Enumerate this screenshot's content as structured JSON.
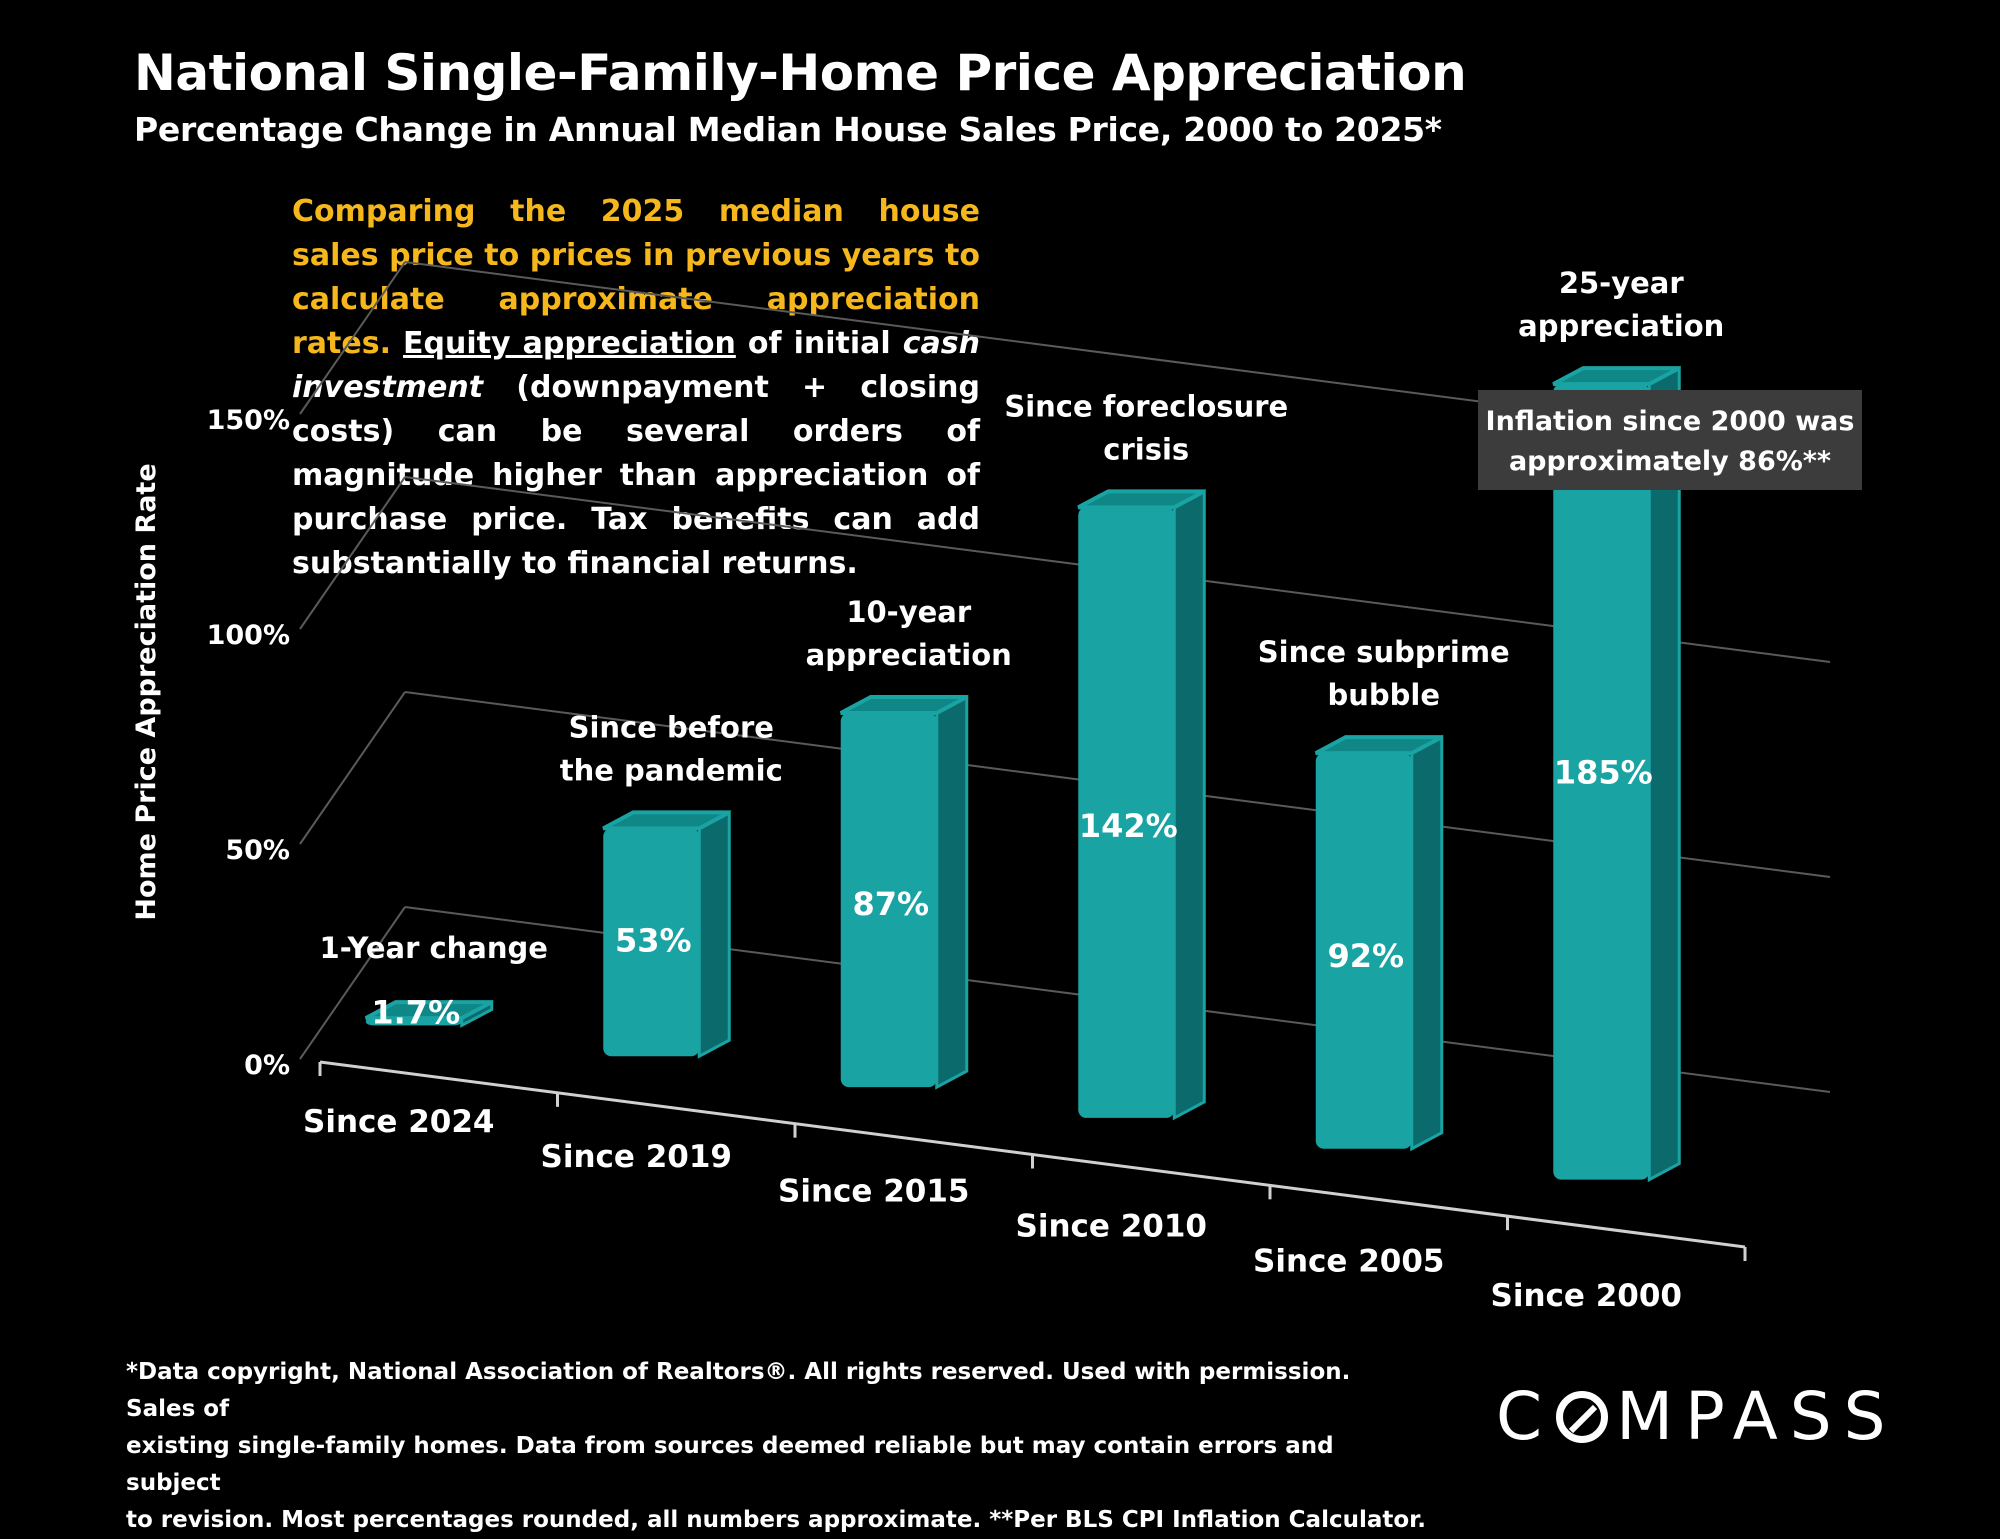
{
  "header": {
    "title": "National Single-Family-Home Price Appreciation",
    "subtitle": "Percentage Change in Annual Median House Sales Price, 2000 to 2025*"
  },
  "note": {
    "highlight": "Comparing the 2025 median house sales price to prices in previous years to calculate approximate appreciation rates.",
    "underlined": "Equity appreciation",
    "part1": " of initial ",
    "italic": "cash investment",
    "part2": " (downpayment + closing costs) can be several orders of magnitude higher than appreciation of purchase price. Tax benefits can add substantially to financial returns."
  },
  "chart_data": {
    "type": "bar",
    "title": "National Single-Family-Home Price Appreciation",
    "ylabel": "Home Price Appreciation Rate",
    "xlabel": "",
    "ylim": [
      0,
      150
    ],
    "y_ticks": [
      0,
      50,
      100,
      150
    ],
    "y_tick_labels": [
      "0%",
      "50%",
      "100%",
      "150%"
    ],
    "categories": [
      "Since 2024",
      "Since 2019",
      "Since 2015",
      "Since 2010",
      "Since 2005",
      "Since 2000"
    ],
    "values": [
      1.7,
      53,
      87,
      142,
      92,
      185
    ],
    "value_labels": [
      "1.7%",
      "53%",
      "87%",
      "142%",
      "92%",
      "185%"
    ],
    "annotations": [
      [
        "1-Year change"
      ],
      [
        "Since before",
        "the pandemic"
      ],
      [
        "10-year",
        "appreciation"
      ],
      [
        "Since foreclosure",
        "crisis"
      ],
      [
        "Since subprime",
        "bubble"
      ],
      [
        "25-year",
        "appreciation"
      ]
    ],
    "callout": [
      "Inflation since 2000 was",
      "approximately 86%**"
    ],
    "colors": {
      "bar_front": "#1aa3a3",
      "bar_side": "#0b6a6c",
      "bar_top": "#0f8787",
      "grid": "#5a5a5a",
      "callout_bg": "#3c3c3c"
    }
  },
  "footer": {
    "lines": [
      "*Data copyright, National Association of Realtors®. All rights reserved. Used with permission. Sales of",
      "existing single-family homes. Data from sources deemed reliable but may contain errors and subject",
      "to revision. Most percentages rounded, all numbers  approximate. **Per BLS CPI Inflation Calculator."
    ]
  },
  "logo": {
    "before": "C",
    "after": "MPASS"
  }
}
